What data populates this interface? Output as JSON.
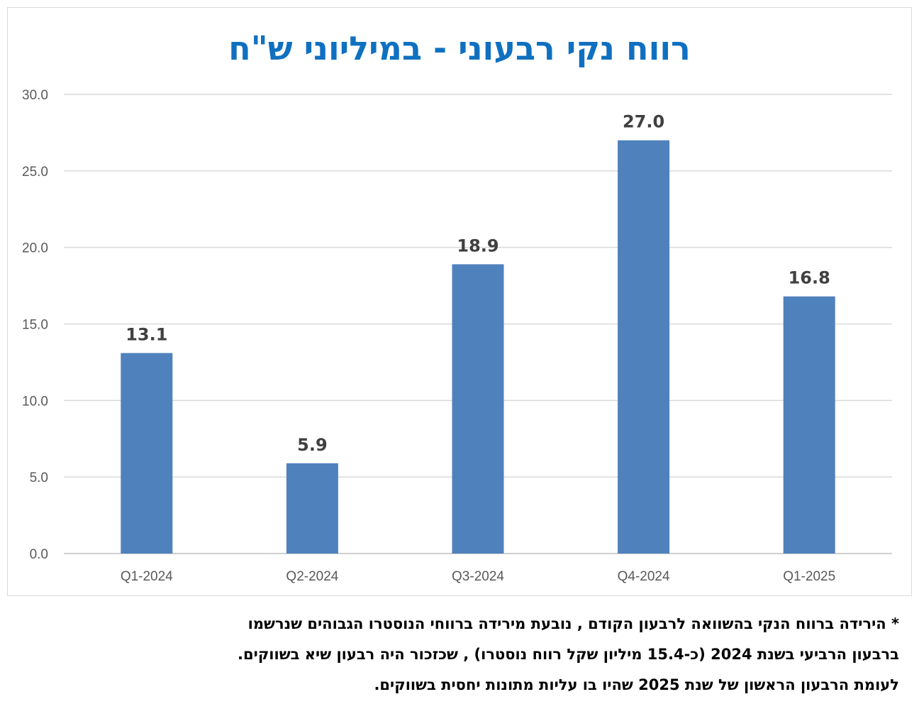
{
  "chart_data": {
    "type": "bar",
    "title": "רווח נקי רבעוני - במיליוני ש\"ח",
    "categories": [
      "Q1-2024",
      "Q2-2024",
      "Q3-2024",
      "Q4-2024",
      "Q1-2025"
    ],
    "values": [
      13.1,
      5.9,
      18.9,
      27.0,
      16.8
    ],
    "data_labels": [
      "13.1",
      "5.9",
      "18.9",
      "27.0",
      "16.8"
    ],
    "y_ticks": [
      "0.0",
      "5.0",
      "10.0",
      "15.0",
      "20.0",
      "25.0",
      "30.0"
    ],
    "ylim": [
      0,
      30
    ],
    "xlabel": "",
    "ylabel": "",
    "grid": true,
    "bar_color": "#4f81bd"
  },
  "footnote": {
    "lines": [
      "* הירידה ברווח הנקי בהשוואה לרבעון הקודם  , נובעת מירידה ברווחי הנוסטרו הגבוהים שנרשמו",
      "ברבעון הרביעי בשנת 2024 (כ-15.4 מיליון שקל רווח נוסטרו) , שכזכור היה רבעון שיא בשווקים.",
      "לעומת הרבעון הראשון של שנת 2025 שהיו בו עליות מתונות יחסית בשווקים."
    ]
  }
}
